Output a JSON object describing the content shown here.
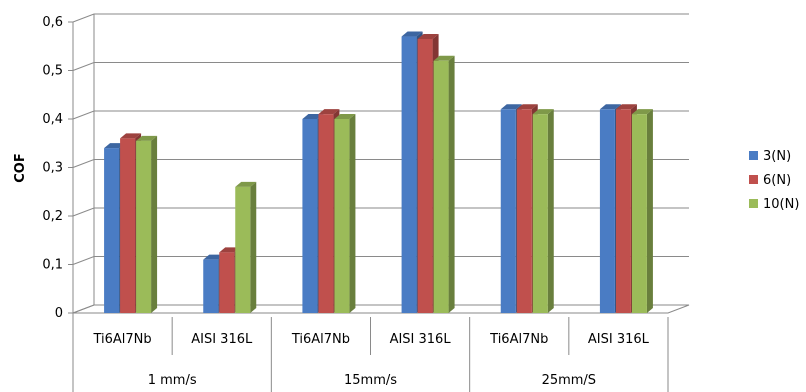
{
  "chart_data": {
    "type": "bar",
    "title": "",
    "xlabel": "",
    "ylabel": "COF",
    "ylim": [
      0,
      0.6
    ],
    "yticks": [
      "0",
      "0,1",
      "0,2",
      "0,3",
      "0,4",
      "0,5",
      "0,6"
    ],
    "grid": true,
    "legend_position": "right",
    "categories": [
      "Ti6Al7Nb",
      "AISI 316L",
      "Ti6Al7Nb",
      "AISI 316L",
      "Ti6Al7Nb",
      "AISI 316L"
    ],
    "groups": [
      {
        "label": "1 mm/s"
      },
      {
        "label": "15mm/s"
      },
      {
        "label": "25mm/S"
      }
    ],
    "series": [
      {
        "name": "3(N)",
        "color": "#4a7cc4",
        "values": [
          0.34,
          0.11,
          0.4,
          0.57,
          0.42,
          0.42
        ]
      },
      {
        "name": "6(N)",
        "color": "#c0504d",
        "values": [
          0.36,
          0.125,
          0.41,
          0.565,
          0.42,
          0.42
        ]
      },
      {
        "name": "10(N)",
        "color": "#9bbb59",
        "values": [
          0.355,
          0.26,
          0.4,
          0.52,
          0.41,
          0.41
        ]
      }
    ]
  }
}
